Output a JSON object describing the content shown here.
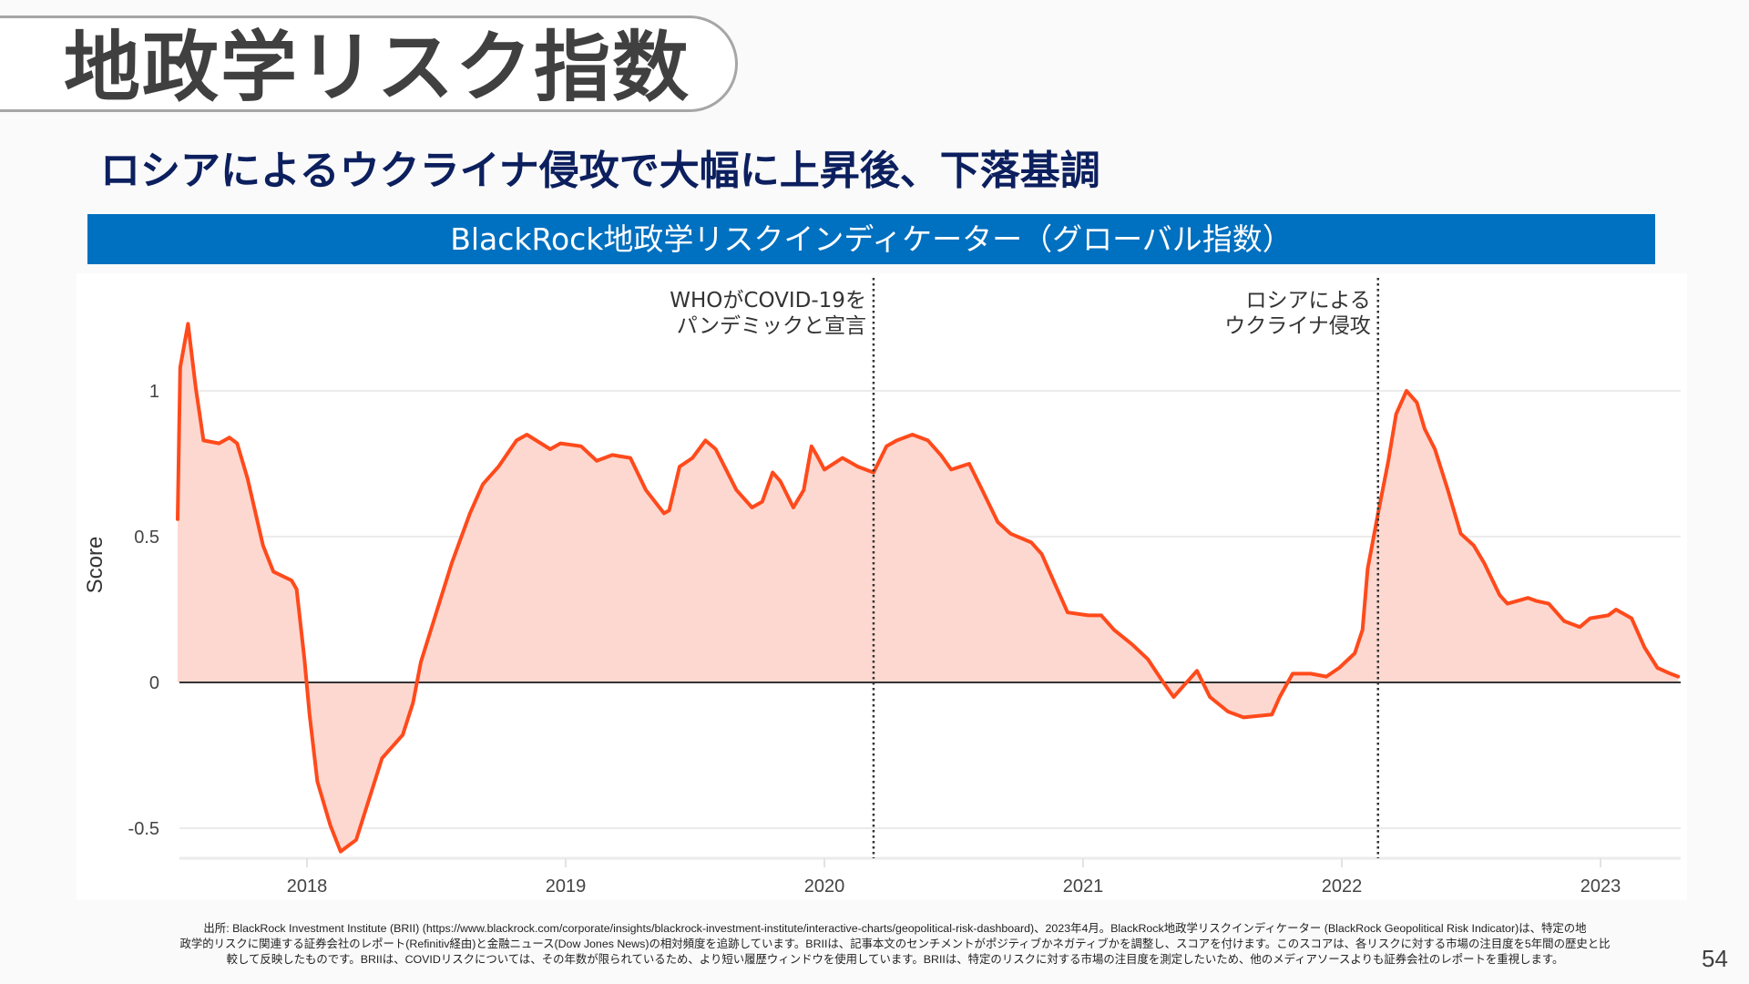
{
  "slide": {
    "title": "地政学リスク指数",
    "subtitle": "ロシアによるウクライナ侵攻で大幅に上昇後、下落基調",
    "banner": "BlackRock地政学リスクインディケーター（グローバル指数）",
    "footnote_lines": [
      "出所: BlackRock Investment Institute (BRII) (https://www.blackrock.com/corporate/insights/blackrock-investment-institute/interactive-charts/geopolitical-risk-dashboard)、2023年4月。BlackRock地政学リスクインディケーター (BlackRock Geopolitical Risk Indicator)は、特定の地",
      "政学的リスクに関連する証券会社のレポート(Refinitiv経由)と金融ニュース(Dow Jones News)の相対頻度を追跡しています。BRIIは、記事本文のセンチメントがポジティブかネガティブかを調整し、スコアを付けます。このスコアは、各リスクに対する市場の注目度を5年間の歴史と比",
      "較して反映したものです。BRIIは、COVIDリスクについては、その年数が限られているため、より短い履歴ウィンドウを使用しています。BRIIは、特定のリスクに対する市場の注目度を測定したいため、他のメディアソースよりも証券会社のレポートを重視します。"
    ],
    "page_number": "54"
  },
  "chart_data": {
    "type": "area",
    "title": "BlackRock地政学リスクインディケーター（グローバル指数）",
    "xlabel": "",
    "ylabel": "Score",
    "xlim": [
      2017.5,
      2023.32
    ],
    "ylim": [
      -0.62,
      1.3
    ],
    "grid": true,
    "x_ticks": [
      2018,
      2019,
      2020,
      2021,
      2022,
      2023
    ],
    "x_tick_labels": [
      "2018",
      "2019",
      "2020",
      "2021",
      "2022",
      "2023"
    ],
    "y_ticks": [
      -0.5,
      0,
      0.5,
      1
    ],
    "y_tick_labels": [
      "-0.5",
      "0",
      "0.5",
      "1"
    ],
    "colors": {
      "line": "#ff4a1c",
      "fill": "#fdd8d0",
      "grid": "#ebebeb",
      "zero": "#333333",
      "event_line": "#333333"
    },
    "annotations": [
      {
        "x": 2020.19,
        "lines": [
          "WHOがCOVID-19を",
          "パンデミックと宣言"
        ]
      },
      {
        "x": 2022.14,
        "lines": [
          "ロシアによる",
          "ウクライナ侵攻"
        ]
      }
    ],
    "series": [
      {
        "name": "Score",
        "x": [
          2017.5,
          2017.51,
          2017.54,
          2017.57,
          2017.6,
          2017.66,
          2017.7,
          2017.73,
          2017.77,
          2017.83,
          2017.87,
          2017.94,
          2017.96,
          2017.99,
          2018.01,
          2018.04,
          2018.09,
          2018.13,
          2018.19,
          2018.24,
          2018.29,
          2018.37,
          2018.41,
          2018.44,
          2018.5,
          2018.56,
          2018.63,
          2018.68,
          2018.74,
          2018.81,
          2018.85,
          2018.94,
          2018.98,
          2019.06,
          2019.12,
          2019.18,
          2019.25,
          2019.31,
          2019.38,
          2019.4,
          2019.44,
          2019.49,
          2019.54,
          2019.58,
          2019.66,
          2019.72,
          2019.76,
          2019.8,
          2019.83,
          2019.88,
          2019.92,
          2019.95,
          2019.97,
          2020.0,
          2020.07,
          2020.13,
          2020.19,
          2020.24,
          2020.28,
          2020.34,
          2020.4,
          2020.45,
          2020.49,
          2020.56,
          2020.61,
          2020.67,
          2020.72,
          2020.8,
          2020.84,
          2020.9,
          2020.94,
          2021.02,
          2021.07,
          2021.12,
          2021.19,
          2021.25,
          2021.31,
          2021.35,
          2021.38,
          2021.44,
          2021.49,
          2021.56,
          2021.62,
          2021.73,
          2021.76,
          2021.81,
          2021.88,
          2021.94,
          2021.99,
          2022.05,
          2022.08,
          2022.1,
          2022.14,
          2022.18,
          2022.21,
          2022.25,
          2022.29,
          2022.32,
          2022.36,
          2022.41,
          2022.46,
          2022.51,
          2022.55,
          2022.61,
          2022.64,
          2022.72,
          2022.75,
          2022.8,
          2022.86,
          2022.92,
          2022.96,
          2023.03,
          2023.06,
          2023.12,
          2023.17,
          2023.22,
          2023.27,
          2023.3
        ],
        "values": [
          0.56,
          1.08,
          1.23,
          1.01,
          0.83,
          0.82,
          0.84,
          0.82,
          0.7,
          0.47,
          0.38,
          0.35,
          0.32,
          0.08,
          -0.11,
          -0.34,
          -0.49,
          -0.58,
          -0.54,
          -0.4,
          -0.26,
          -0.18,
          -0.07,
          0.07,
          0.24,
          0.41,
          0.58,
          0.68,
          0.74,
          0.83,
          0.85,
          0.8,
          0.82,
          0.81,
          0.76,
          0.78,
          0.77,
          0.66,
          0.58,
          0.59,
          0.74,
          0.77,
          0.83,
          0.8,
          0.66,
          0.6,
          0.62,
          0.72,
          0.69,
          0.6,
          0.66,
          0.81,
          0.78,
          0.73,
          0.77,
          0.74,
          0.72,
          0.81,
          0.83,
          0.85,
          0.83,
          0.78,
          0.73,
          0.75,
          0.66,
          0.55,
          0.51,
          0.48,
          0.44,
          0.32,
          0.24,
          0.23,
          0.23,
          0.18,
          0.13,
          0.08,
          0.0,
          -0.05,
          -0.02,
          0.04,
          -0.05,
          -0.1,
          -0.12,
          -0.11,
          -0.05,
          0.03,
          0.03,
          0.02,
          0.05,
          0.1,
          0.18,
          0.39,
          0.58,
          0.76,
          0.92,
          1.0,
          0.96,
          0.87,
          0.8,
          0.66,
          0.51,
          0.47,
          0.41,
          0.3,
          0.27,
          0.29,
          0.28,
          0.27,
          0.21,
          0.19,
          0.22,
          0.23,
          0.25,
          0.22,
          0.12,
          0.05,
          0.03,
          0.02
        ]
      }
    ]
  }
}
